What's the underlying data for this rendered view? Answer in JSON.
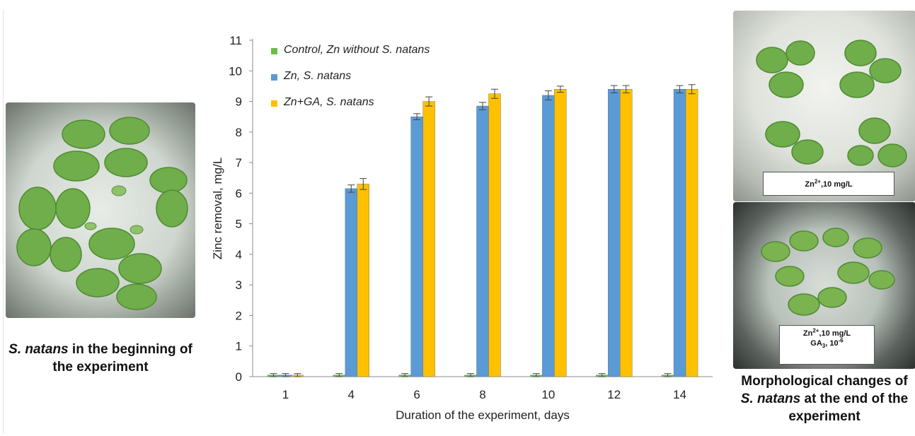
{
  "left_photo": {
    "caption_italic": "S. natans",
    "caption_rest": " in the beginning of the experiment"
  },
  "right_photos": {
    "top_label": {
      "ion": "Zn",
      "charge": "2+",
      "conc": ",10 mg/L"
    },
    "bottom_label": {
      "ion": "Zn",
      "charge": "2+",
      "conc": ",10 mg/L",
      "ga": "GA",
      "ga_sub": "3",
      "ga_conc": ", 10",
      "ga_exp": "-6"
    },
    "caption_top": "Morphological changes of",
    "caption_italic": "S. natans",
    "caption_rest": " at the end of the experiment"
  },
  "chart_data": {
    "type": "bar",
    "title": "",
    "xlabel": "Duration of the experiment, days",
    "ylabel": "Zinc removal, mg/L",
    "ylim": [
      0,
      11
    ],
    "yticks": [
      0,
      1,
      2,
      3,
      4,
      5,
      6,
      7,
      8,
      9,
      10,
      11
    ],
    "categories": [
      "1",
      "4",
      "6",
      "8",
      "10",
      "12",
      "14"
    ],
    "legend_position": "top-left",
    "grid": false,
    "series": [
      {
        "name": "Control, Zn without S. natans",
        "color": "#6abf4b",
        "values": [
          0.05,
          0.05,
          0.05,
          0.05,
          0.05,
          0.05,
          0.05
        ],
        "errors": [
          0.05,
          0.05,
          0.05,
          0.05,
          0.05,
          0.05,
          0.05
        ]
      },
      {
        "name": "Zn, S. natans",
        "color": "#5b9bd5",
        "values": [
          0.05,
          6.15,
          8.5,
          8.85,
          9.2,
          9.4,
          9.4
        ],
        "errors": [
          0.05,
          0.12,
          0.1,
          0.12,
          0.15,
          0.12,
          0.12
        ]
      },
      {
        "name": "Zn+GA, S. natans",
        "color": "#ffc000",
        "values": [
          0.05,
          6.3,
          9.0,
          9.25,
          9.4,
          9.4,
          9.4
        ],
        "errors": [
          0.05,
          0.18,
          0.15,
          0.15,
          0.1,
          0.12,
          0.15
        ]
      }
    ]
  }
}
